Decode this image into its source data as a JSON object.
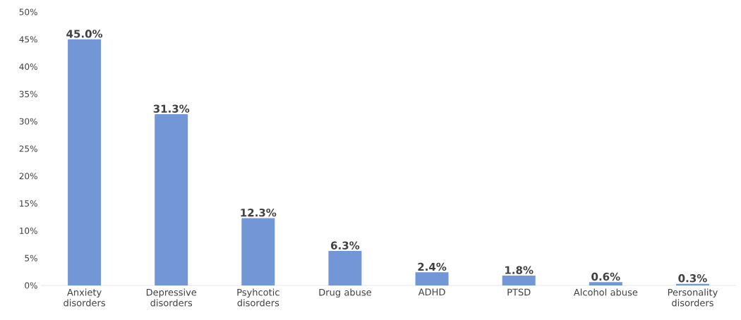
{
  "chart_data": {
    "type": "bar",
    "categories": [
      "Anxiety disorders",
      "Depressive disorders",
      "Psyhcotic disorders",
      "Drug abuse",
      "ADHD",
      "PTSD",
      "Alcohol abuse",
      "Personality disorders"
    ],
    "values": [
      45.0,
      31.3,
      12.3,
      6.3,
      2.4,
      1.8,
      0.6,
      0.3
    ],
    "value_labels": [
      "45.0%",
      "31.3%",
      "12.3%",
      "6.3%",
      "2.4%",
      "1.8%",
      "0.6%",
      "0.3%"
    ],
    "color": "#7396d6",
    "ylim": [
      0,
      50
    ],
    "yticks": [
      {
        "value": 0,
        "label": "0%"
      },
      {
        "value": 5,
        "label": "5%"
      },
      {
        "value": 10,
        "label": "10%"
      },
      {
        "value": 15,
        "label": "15%"
      },
      {
        "value": 20,
        "label": "20%"
      },
      {
        "value": 25,
        "label": "25%"
      },
      {
        "value": 30,
        "label": "30%"
      },
      {
        "value": 35,
        "label": "35%"
      },
      {
        "value": 40,
        "label": "40%"
      },
      {
        "value": 45,
        "label": "45%"
      },
      {
        "value": 50,
        "label": "50%"
      }
    ]
  }
}
